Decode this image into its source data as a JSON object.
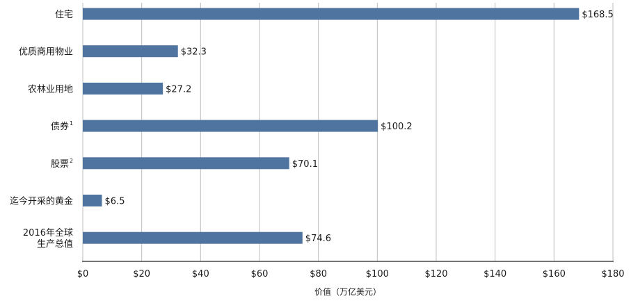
{
  "chart_data": {
    "type": "bar",
    "orientation": "horizontal",
    "categories": [
      {
        "lines": [
          "住宅"
        ],
        "sup": ""
      },
      {
        "lines": [
          "优质商用物业"
        ],
        "sup": ""
      },
      {
        "lines": [
          "农林业用地"
        ],
        "sup": ""
      },
      {
        "lines": [
          "债券"
        ],
        "sup": "1"
      },
      {
        "lines": [
          "股票"
        ],
        "sup": "2"
      },
      {
        "lines": [
          "迄今开采的黄金"
        ],
        "sup": ""
      },
      {
        "lines": [
          "2016年全球",
          "生产总值"
        ],
        "sup": ""
      }
    ],
    "values": [
      168.5,
      32.3,
      27.2,
      100.2,
      70.1,
      6.5,
      74.6
    ],
    "value_labels": [
      "$168.5",
      "$32.3",
      "$27.2",
      "$100.2",
      "$70.1",
      "$6.5",
      "$74.6"
    ],
    "xticks": [
      0,
      20,
      40,
      60,
      80,
      100,
      120,
      140,
      160,
      180
    ],
    "xtick_labels": [
      "$0",
      "$20",
      "$40",
      "$60",
      "$80",
      "$100",
      "$120",
      "$140",
      "$160",
      "$180"
    ],
    "xlim": [
      0,
      180
    ],
    "xlabel": "价值（万亿美元）",
    "title": "",
    "grid": "vertical",
    "bar_color": "#4f74a0"
  }
}
